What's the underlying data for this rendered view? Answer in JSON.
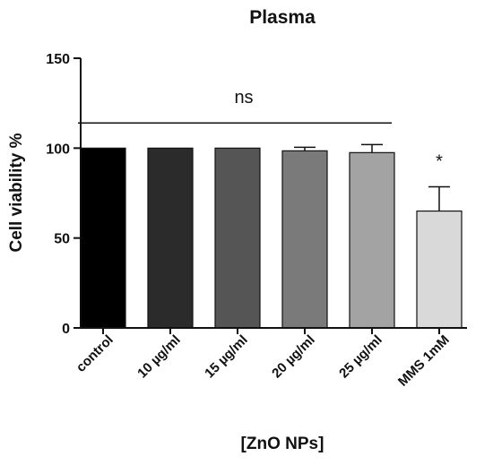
{
  "chart_data": {
    "type": "bar",
    "title": "Plasma",
    "xlabel": "[ZnO NPs]",
    "ylabel": "Cell viability %",
    "ylim": [
      0,
      150
    ],
    "yticks": [
      0,
      50,
      100,
      150
    ],
    "grid": false,
    "categories": [
      "control",
      "10 µg/ml",
      "15 µg/ml",
      "20 µg/ml",
      "25 µg/ml",
      "MMS 1mM"
    ],
    "values": [
      100,
      100,
      100,
      98.5,
      97.5,
      65
    ],
    "errors": [
      0,
      0,
      0,
      2,
      4.5,
      13.5
    ],
    "colors": [
      "#000000",
      "#2b2b2b",
      "#555555",
      "#7a7a7a",
      "#a3a3a3",
      "#d9d9d9"
    ],
    "annotations": {
      "ns_label": "ns",
      "ns_value": 114,
      "ns_span": [
        0,
        4
      ],
      "significance_marker": "*",
      "significance_index": 5
    }
  }
}
